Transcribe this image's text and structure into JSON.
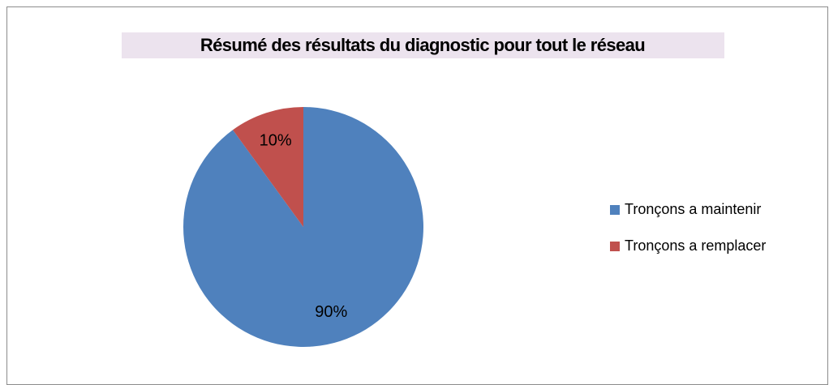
{
  "chart_data": {
    "type": "pie",
    "title": "Résumé des résultats du diagnostic pour tout le réseau",
    "categories": [
      "Tronçons a maintenir",
      "Tronçons a remplacer"
    ],
    "values": [
      90,
      10
    ],
    "value_labels": [
      "90%",
      "10%"
    ],
    "colors": [
      "#4f81bd",
      "#c0504d"
    ],
    "legend": "right"
  }
}
